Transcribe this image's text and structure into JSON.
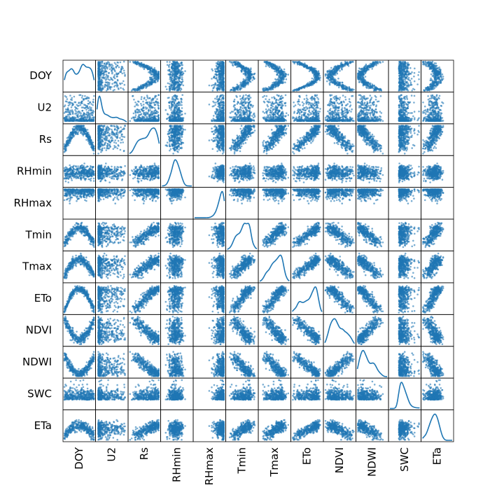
{
  "chart_data": {
    "type": "scatter",
    "subtype": "scatter-matrix",
    "variables": [
      "DOY",
      "U2",
      "Rs",
      "RHmin",
      "RHmax",
      "Tmin",
      "Tmax",
      "ETo",
      "NDVI",
      "NDWI",
      "SWC",
      "ETa"
    ],
    "diagonal": "kde",
    "point_color": "#1f77b4",
    "point_alpha": 0.6,
    "grid": false,
    "n_points_per_panel": 365,
    "relationships": [
      {
        "pair": [
          "Rs",
          "ETo"
        ],
        "trend": "strong positive"
      },
      {
        "pair": [
          "ETo",
          "ETa"
        ],
        "trend": "positive"
      },
      {
        "pair": [
          "Rs",
          "ETa"
        ],
        "trend": "positive"
      },
      {
        "pair": [
          "Tmin",
          "Tmax"
        ],
        "trend": "strong positive"
      },
      {
        "pair": [
          "NDVI",
          "NDWI"
        ],
        "trend": "positive"
      },
      {
        "pair": [
          "Tmin",
          "NDVI"
        ],
        "trend": "negative"
      },
      {
        "pair": [
          "Tmax",
          "NDVI"
        ],
        "trend": "negative"
      },
      {
        "pair": [
          "Tmin",
          "NDWI"
        ],
        "trend": "negative"
      },
      {
        "pair": [
          "Tmax",
          "NDWI"
        ],
        "trend": "negative"
      },
      {
        "pair": [
          "ETo",
          "NDVI"
        ],
        "trend": "negative"
      },
      {
        "pair": [
          "DOY",
          "Tmin"
        ],
        "trend": "arch (peaks mid-year)"
      },
      {
        "pair": [
          "DOY",
          "Tmax"
        ],
        "trend": "arch (peaks mid-year)"
      },
      {
        "pair": [
          "DOY",
          "Rs"
        ],
        "trend": "arch (peaks mid-year)"
      },
      {
        "pair": [
          "DOY",
          "ETo"
        ],
        "trend": "arch (peaks mid-year)"
      },
      {
        "pair": [
          "DOY",
          "NDVI"
        ],
        "trend": "V-shape (dips mid-year)"
      },
      {
        "pair": [
          "DOY",
          "NDWI"
        ],
        "trend": "V-shape (dips mid-year)"
      }
    ],
    "diagonal_shapes": {
      "DOY": "broad hump skewed right",
      "U2": "sharp spike at left, long right tail",
      "Rs": "left-skewed, peak near right",
      "RHmin": "unimodal peak center-left",
      "RHmax": "flat then sharp rise at far right",
      "Tmin": "left-skewed, peak center-right",
      "Tmax": "left-skewed, peak center-right",
      "ETo": "bimodal, taller right peak",
      "NDVI": "bimodal, peaks left-center and right",
      "NDWI": "right-skewed, peak at left",
      "SWC": "right-skewed, peak left-center",
      "ETa": "right-skewed with shoulder"
    }
  }
}
